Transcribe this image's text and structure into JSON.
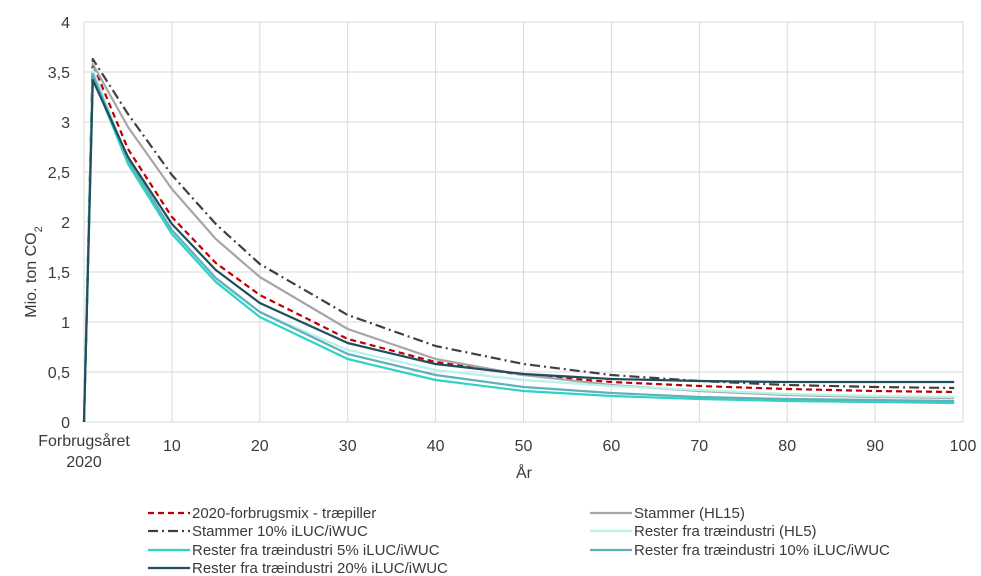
{
  "chart_data": {
    "type": "line",
    "xlabel": "År",
    "ylabel": "Mio. ton CO",
    "ylabel_sub": "2",
    "xlim": [
      0,
      100
    ],
    "ylim": [
      0,
      4
    ],
    "grid": true,
    "legend_position": "bottom",
    "x_ticks": [
      {
        "value": 0,
        "label": "Forbrugsåret",
        "label2": "2020"
      },
      {
        "value": 10,
        "label": "10"
      },
      {
        "value": 20,
        "label": "20"
      },
      {
        "value": 30,
        "label": "30"
      },
      {
        "value": 40,
        "label": "40"
      },
      {
        "value": 50,
        "label": "50"
      },
      {
        "value": 60,
        "label": "60"
      },
      {
        "value": 70,
        "label": "70"
      },
      {
        "value": 80,
        "label": "80"
      },
      {
        "value": 90,
        "label": "90"
      },
      {
        "value": 100,
        "label": "100"
      }
    ],
    "y_ticks": [
      {
        "value": 0,
        "label": "0"
      },
      {
        "value": 0.5,
        "label": "0,5"
      },
      {
        "value": 1,
        "label": "1"
      },
      {
        "value": 1.5,
        "label": "1,5"
      },
      {
        "value": 2,
        "label": "2"
      },
      {
        "value": 2.5,
        "label": "2,5"
      },
      {
        "value": 3,
        "label": "3"
      },
      {
        "value": 3.5,
        "label": "3,5"
      },
      {
        "value": 4,
        "label": "4"
      }
    ],
    "series": [
      {
        "name": "2020-forbrugsmix - træpiller",
        "color": "#c00000",
        "dash": "dashed",
        "x": [
          0,
          1,
          5,
          10,
          15,
          20,
          30,
          40,
          50,
          60,
          70,
          80,
          90,
          99
        ],
        "y": [
          0,
          3.58,
          2.73,
          2.05,
          1.59,
          1.27,
          0.83,
          0.6,
          0.47,
          0.4,
          0.36,
          0.33,
          0.31,
          0.3
        ]
      },
      {
        "name": "Stammer (HL15)",
        "color": "#a6a6a6",
        "dash": "solid",
        "x": [
          0,
          1,
          5,
          10,
          15,
          20,
          30,
          40,
          50,
          60,
          70,
          80,
          90,
          99
        ],
        "y": [
          0,
          3.58,
          2.95,
          2.33,
          1.83,
          1.45,
          0.93,
          0.63,
          0.47,
          0.37,
          0.31,
          0.27,
          0.25,
          0.24
        ]
      },
      {
        "name": "Stammer 10% iLUC/iWUC",
        "color": "#404040",
        "dash": "dashdot",
        "x": [
          0,
          1,
          5,
          10,
          15,
          20,
          30,
          40,
          50,
          60,
          70,
          80,
          90,
          99
        ],
        "y": [
          0,
          3.63,
          3.08,
          2.47,
          1.98,
          1.58,
          1.07,
          0.76,
          0.58,
          0.47,
          0.41,
          0.37,
          0.35,
          0.34
        ]
      },
      {
        "name": "Rester fra træindustri (HL5)",
        "color": "#b8f2ec",
        "dash": "solid",
        "x": [
          0,
          1,
          5,
          10,
          15,
          20,
          30,
          40,
          50,
          60,
          70,
          80,
          90,
          99
        ],
        "y": [
          0,
          3.53,
          2.62,
          1.9,
          1.42,
          1.1,
          0.72,
          0.52,
          0.42,
          0.36,
          0.32,
          0.28,
          0.26,
          0.25
        ]
      },
      {
        "name": "Rester fra træindustri 5% iLUC/iWUC",
        "color": "#2ed3c3",
        "dash": "solid",
        "x": [
          0,
          1,
          5,
          10,
          15,
          20,
          30,
          40,
          50,
          60,
          70,
          80,
          90,
          99
        ],
        "y": [
          0,
          3.45,
          2.58,
          1.88,
          1.4,
          1.05,
          0.63,
          0.42,
          0.31,
          0.26,
          0.23,
          0.21,
          0.2,
          0.19
        ]
      },
      {
        "name": "Rester fra træindustri 10% iLUC/iWUC",
        "color": "#5fb0bc",
        "dash": "solid",
        "x": [
          0,
          1,
          5,
          10,
          15,
          20,
          30,
          40,
          50,
          60,
          70,
          80,
          90,
          99
        ],
        "y": [
          0,
          3.48,
          2.62,
          1.92,
          1.44,
          1.1,
          0.68,
          0.47,
          0.35,
          0.29,
          0.25,
          0.23,
          0.22,
          0.21
        ]
      },
      {
        "name": "Rester fra træindustri 20% iLUC/iWUC",
        "color": "#1f4e5f",
        "dash": "solid",
        "x": [
          0,
          1,
          5,
          10,
          15,
          20,
          30,
          40,
          50,
          60,
          70,
          80,
          90,
          99
        ],
        "y": [
          0,
          3.42,
          2.65,
          1.98,
          1.52,
          1.19,
          0.79,
          0.58,
          0.48,
          0.43,
          0.41,
          0.4,
          0.4,
          0.4
        ]
      }
    ]
  }
}
